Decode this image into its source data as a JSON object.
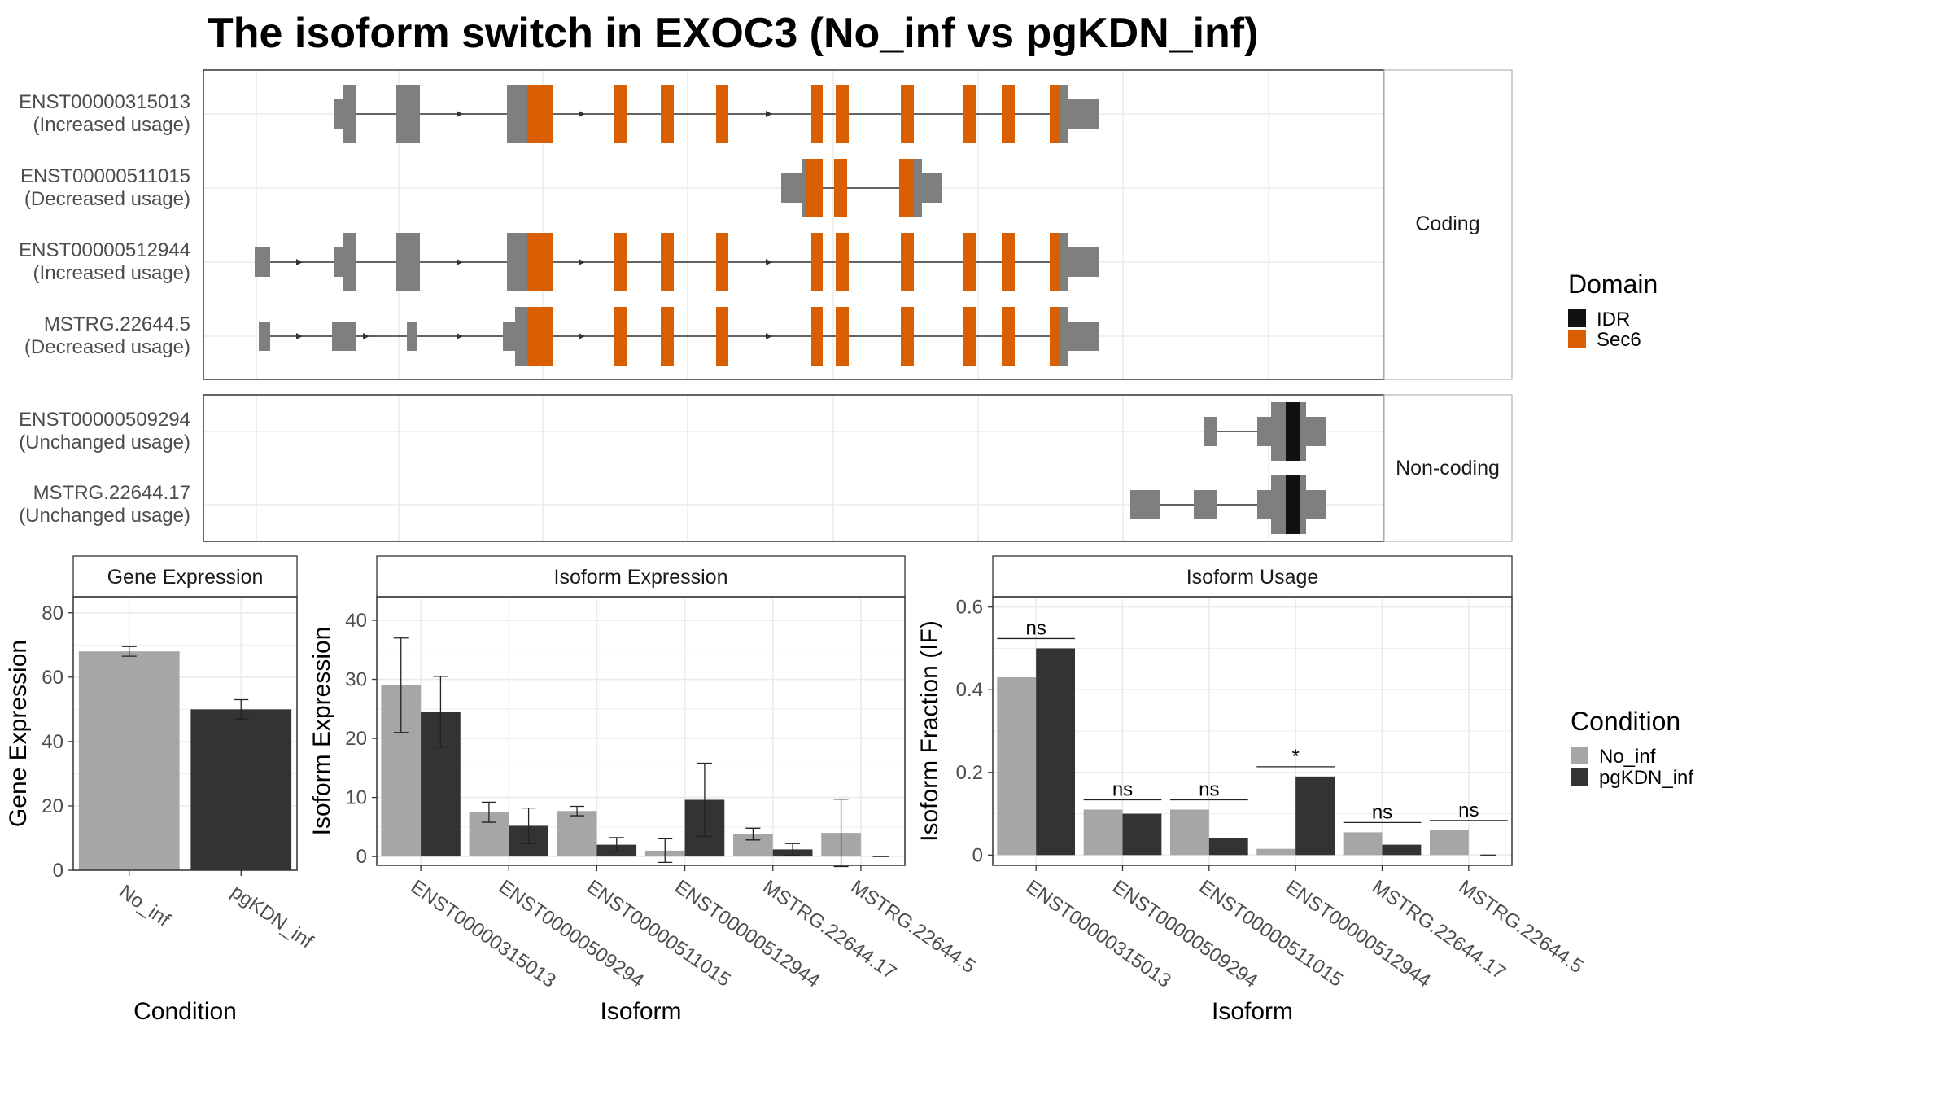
{
  "title": "The isoform switch in EXOC3 (No_inf vs pgKDN_inf)",
  "colors": {
    "no_inf": "#a6a6a6",
    "pgkdn_inf": "#333333",
    "exon": "#7f7f7f",
    "sec6": "#d95f02",
    "idr": "#111111",
    "grid": "#ebebeb",
    "panel_border": "#333333",
    "strip_bg": "#ffffff"
  },
  "structure": {
    "facets": [
      "Coding",
      "Non-coding"
    ],
    "isoforms": [
      {
        "id": "ENST00000315013",
        "status": "(Increased usage)",
        "facet": "Coding"
      },
      {
        "id": "ENST00000511015",
        "status": "(Decreased usage)",
        "facet": "Coding"
      },
      {
        "id": "ENST00000512944",
        "status": "(Increased usage)",
        "facet": "Coding"
      },
      {
        "id": "MSTRG.22644.5",
        "status": "(Decreased usage)",
        "facet": "Coding"
      },
      {
        "id": "ENST00000509294",
        "status": "(Unchanged usage)",
        "facet": "Non-coding"
      },
      {
        "id": "MSTRG.22644.17",
        "status": "(Unchanged usage)",
        "facet": "Non-coding"
      }
    ]
  },
  "legend_domain": {
    "title": "Domain",
    "items": [
      "IDR",
      "Sec6"
    ]
  },
  "legend_condition": {
    "title": "Condition",
    "items": [
      "No_inf",
      "pgKDN_inf"
    ]
  },
  "chart_data": [
    {
      "type": "bar",
      "title": "Gene Expression",
      "xlabel": "Condition",
      "ylabel": "Gene Expression",
      "categories": [
        "No_inf",
        "pgKDN_inf"
      ],
      "values": [
        68,
        50
      ],
      "errors": [
        1.5,
        3
      ],
      "ylim": [
        0,
        85
      ],
      "yticks": [
        0,
        20,
        40,
        60,
        80
      ]
    },
    {
      "type": "bar",
      "title": "Isoform Expression",
      "xlabel": "Isoform",
      "ylabel": "Isoform Expression",
      "categories": [
        "ENST00000315013",
        "ENST00000509294",
        "ENST00000511015",
        "ENST00000512944",
        "MSTRG.22644.17",
        "MSTRG.22644.5"
      ],
      "series": [
        {
          "name": "No_inf",
          "values": [
            29,
            7.5,
            7.7,
            1,
            3.8,
            4
          ],
          "errors": [
            8,
            1.7,
            0.8,
            2,
            1,
            5.7
          ]
        },
        {
          "name": "pgKDN_inf",
          "values": [
            24.5,
            5.2,
            2,
            9.6,
            1.2,
            0
          ],
          "errors": [
            6,
            3,
            1.2,
            6.2,
            1,
            0
          ]
        }
      ],
      "ylim": [
        -1.5,
        44
      ],
      "yticks": [
        0,
        10,
        20,
        30,
        40
      ]
    },
    {
      "type": "bar",
      "title": "Isoform Usage",
      "xlabel": "Isoform",
      "ylabel": "Isoform Fraction (IF)",
      "categories": [
        "ENST00000315013",
        "ENST00000509294",
        "ENST00000511015",
        "ENST00000512944",
        "MSTRG.22644.17",
        "MSTRG.22644.5"
      ],
      "series": [
        {
          "name": "No_inf",
          "values": [
            0.43,
            0.11,
            0.11,
            0.015,
            0.055,
            0.06
          ]
        },
        {
          "name": "pgKDN_inf",
          "values": [
            0.5,
            0.1,
            0.04,
            0.19,
            0.025,
            0
          ]
        }
      ],
      "significance": [
        "ns",
        "ns",
        "ns",
        "*",
        "ns",
        "ns"
      ],
      "ylim": [
        -0.025,
        0.625
      ],
      "yticks": [
        0.0,
        0.2,
        0.4,
        0.6
      ]
    }
  ]
}
